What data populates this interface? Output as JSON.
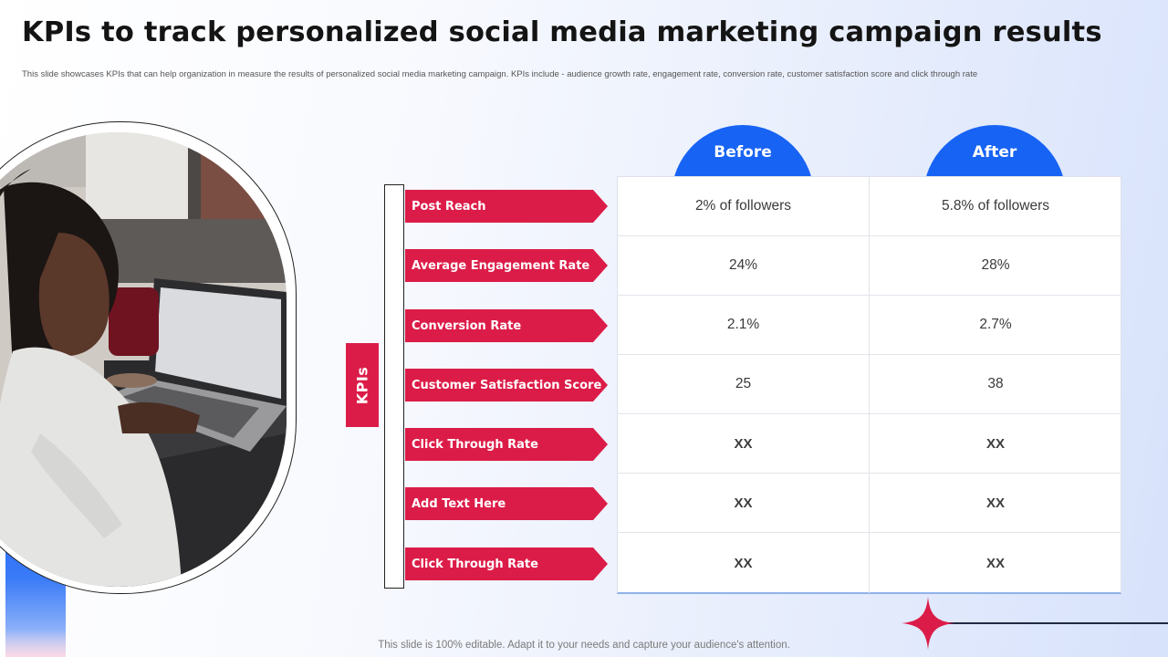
{
  "title": "KPIs to track personalized social media marketing campaign results",
  "subtitle": "This slide showcases KPIs that can help organization in measure the results of personalized social media marketing campaign. KPIs  include - audience growth rate, engagement rate, conversion rate, customer satisfaction score and click through rate",
  "footer": "This slide is 100% editable. Adapt it to your needs and capture your audience's attention.",
  "kpi_tab_label": "KPIs",
  "headers": {
    "before": "Before",
    "after": "After"
  },
  "rows": [
    {
      "label": "Post Reach",
      "before": "2% of followers",
      "after": "5.8% of followers"
    },
    {
      "label": "Average Engagement Rate",
      "before": "24%",
      "after": "28%"
    },
    {
      "label": "Conversion Rate",
      "before": "2.1%",
      "after": "2.7%"
    },
    {
      "label": "Customer Satisfaction Score",
      "before": "25",
      "after": "38"
    },
    {
      "label": "Click Through Rate",
      "before": "XX",
      "after": "XX"
    },
    {
      "label": "Add Text Here",
      "before": "XX",
      "after": "XX"
    },
    {
      "label": "Click Through Rate",
      "before": "XX",
      "after": "XX"
    }
  ],
  "colors": {
    "accent_red": "#dc1c48",
    "accent_blue": "#1763f4"
  },
  "icons": {
    "decoration": "sparkle-star-icon"
  }
}
